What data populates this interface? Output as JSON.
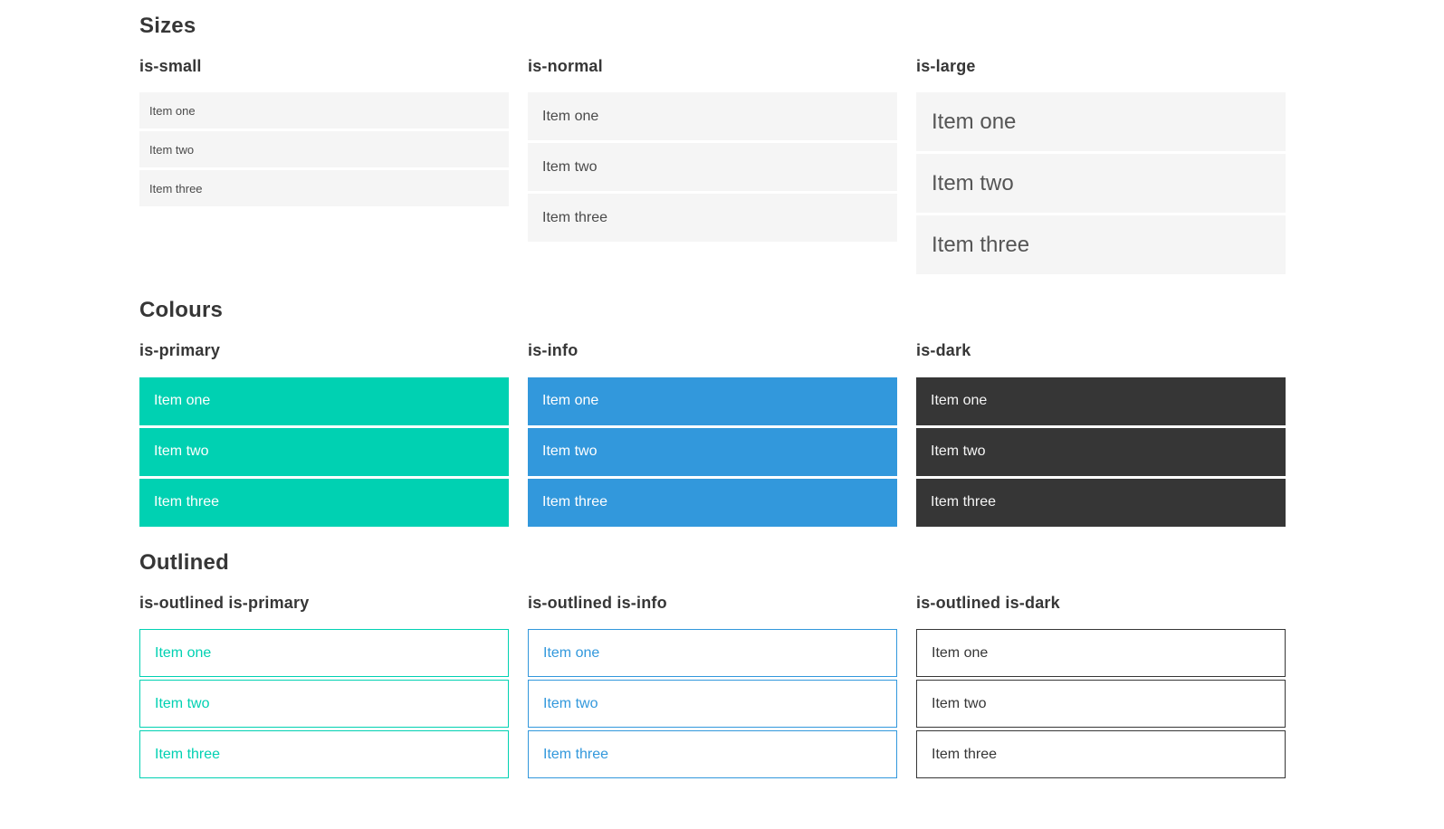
{
  "sections": [
    {
      "title": "Sizes",
      "groups": [
        {
          "label": "is-small",
          "variant": "size-small",
          "items": [
            "Item one",
            "Item two",
            "Item three"
          ]
        },
        {
          "label": "is-normal",
          "variant": "size-normal",
          "items": [
            "Item one",
            "Item two",
            "Item three"
          ]
        },
        {
          "label": "is-large",
          "variant": "size-large",
          "items": [
            "Item one",
            "Item two",
            "Item three"
          ]
        }
      ]
    },
    {
      "title": "Colours",
      "groups": [
        {
          "label": "is-primary",
          "variant": "color-primary",
          "items": [
            "Item one",
            "Item two",
            "Item three"
          ]
        },
        {
          "label": "is-info",
          "variant": "color-info",
          "items": [
            "Item one",
            "Item two",
            "Item three"
          ]
        },
        {
          "label": "is-dark",
          "variant": "color-dark",
          "items": [
            "Item one",
            "Item two",
            "Item three"
          ]
        }
      ]
    },
    {
      "title": "Outlined",
      "groups": [
        {
          "label": "is-outlined is-primary",
          "variant": "outlined-primary",
          "items": [
            "Item one",
            "Item two",
            "Item three"
          ]
        },
        {
          "label": "is-outlined is-info",
          "variant": "outlined-info",
          "items": [
            "Item one",
            "Item two",
            "Item three"
          ]
        },
        {
          "label": "is-outlined is-dark",
          "variant": "outlined-dark",
          "items": [
            "Item one",
            "Item two",
            "Item three"
          ]
        }
      ]
    }
  ],
  "colors": {
    "primary": "#00d1b2",
    "info": "#3298dc",
    "dark": "#363636",
    "light_background": "#f5f5f5",
    "item_text": "#4a4a4a",
    "heading_text": "#363636"
  }
}
